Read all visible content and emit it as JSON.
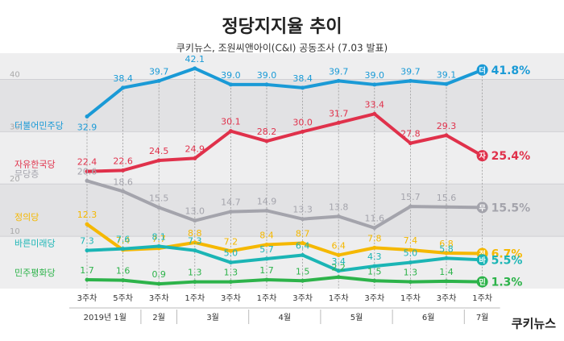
{
  "chart_data": {
    "type": "line",
    "title": "정당지지율 추이",
    "subtitle": "쿠키뉴스, 조원씨앤아이(C&I) 공동조사 (7.03 발표)",
    "logo": "쿠키뉴스",
    "categories": [
      "3주차",
      "5주차",
      "3주차",
      "1주차",
      "3주차",
      "1주차",
      "3주차",
      "1주차",
      "3주차",
      "1주차",
      "3주차",
      "1주차"
    ],
    "months": [
      "2019년 1월",
      null,
      "2월",
      "3월",
      null,
      "4월",
      null,
      "5월",
      null,
      "6월",
      null,
      "7월"
    ],
    "ylim": [
      0,
      45
    ],
    "yticks": [
      10,
      20,
      30,
      40
    ],
    "grid": true,
    "series": [
      {
        "name": "더불어민주당",
        "badge": "더",
        "color": "#1a9ad6",
        "values": [
          32.9,
          38.4,
          39.7,
          42.1,
          39.0,
          39.0,
          38.4,
          39.7,
          39.0,
          39.7,
          39.1,
          41.8
        ],
        "value_labels": [
          "32.9",
          "38.4",
          "39.7",
          "42.1",
          "39.0",
          "39.0",
          "38.4",
          "39.7",
          "39.0",
          "39.7",
          "39.1",
          "41.8%"
        ]
      },
      {
        "name": "자유한국당",
        "badge": "자",
        "color": "#e0314b",
        "values": [
          22.4,
          22.6,
          24.5,
          24.9,
          30.1,
          28.2,
          30.0,
          31.7,
          33.4,
          27.8,
          29.3,
          25.4
        ],
        "value_labels": [
          "22.4",
          "22.6",
          "24.5",
          "24.9",
          "30.1",
          "28.2",
          "30.0",
          "31.7",
          "33.4",
          "27.8",
          "29.3",
          "25.4%"
        ]
      },
      {
        "name": "무당층",
        "badge": "무",
        "color": "#a4a4ac",
        "values": [
          20.6,
          18.6,
          15.5,
          13.0,
          14.7,
          14.9,
          13.3,
          13.8,
          11.6,
          15.7,
          15.6,
          15.5
        ],
        "value_labels": [
          "20.6",
          "18.6",
          "15.5",
          "13.0",
          "14.7",
          "14.9",
          "13.3",
          "13.8",
          "11.6",
          "15.7",
          "15.6",
          "15.5%"
        ]
      },
      {
        "name": "정의당",
        "badge": "정",
        "color": "#f5b800",
        "values": [
          12.3,
          7.4,
          7.7,
          8.8,
          7.2,
          8.4,
          8.7,
          6.4,
          7.8,
          7.4,
          6.8,
          6.7
        ],
        "value_labels": [
          "12.3",
          "7.4",
          "7.7",
          "8.8",
          "7.2",
          "8.4",
          "8.7",
          "6.4",
          "7.8",
          "7.4",
          "6.8",
          "6.7%"
        ]
      },
      {
        "name": "바른미래당",
        "badge": "바",
        "color": "#1bb5b5",
        "values": [
          7.3,
          7.6,
          8.1,
          7.3,
          5.0,
          5.7,
          6.4,
          3.4,
          4.3,
          5.0,
          5.8,
          5.5
        ],
        "value_labels": [
          "7.3",
          "7.6",
          "8.1",
          "7.3",
          "5.0",
          "5.7",
          "6.4",
          "3.4",
          "4.3",
          "5.0",
          "5.8",
          "5.5%"
        ]
      },
      {
        "name": "민주평화당",
        "badge": "민",
        "color": "#2db34a",
        "values": [
          1.7,
          1.6,
          0.9,
          1.3,
          1.3,
          1.7,
          1.5,
          2.2,
          1.5,
          1.3,
          1.4,
          1.3
        ],
        "value_labels": [
          "1.7",
          "1.6",
          "0.9",
          "1.3",
          "1.3",
          "1.7",
          "1.5",
          "2.2",
          "1.5",
          "1.3",
          "1.4",
          "1.3%"
        ]
      }
    ]
  }
}
